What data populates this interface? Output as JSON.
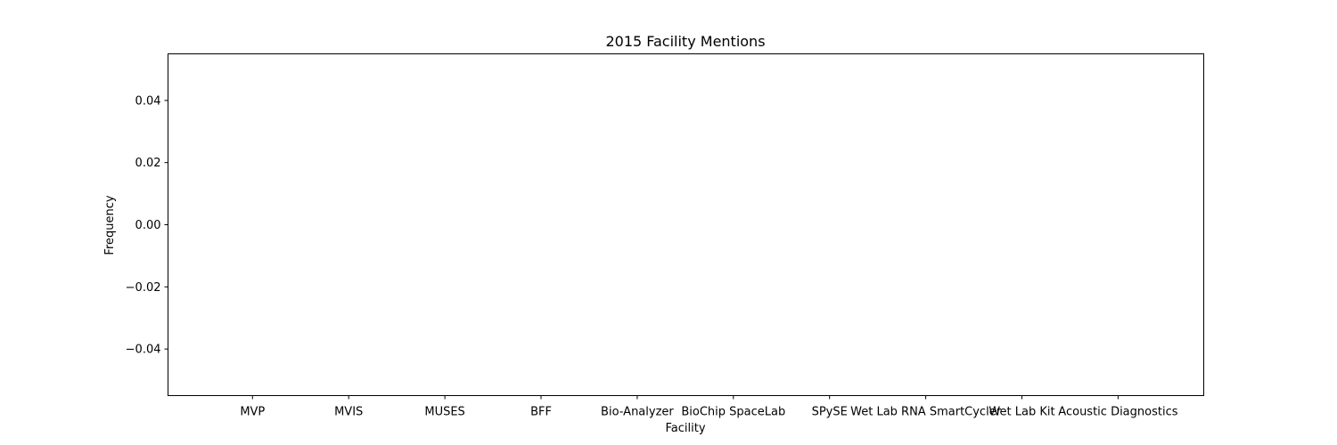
{
  "chart_data": {
    "type": "bar",
    "title": "2015 Facility Mentions",
    "xlabel": "Facility",
    "ylabel": "Frequency",
    "categories": [
      "MVP",
      "MVIS",
      "MUSES",
      "BFF",
      "Bio-Analyzer",
      "BioChip SpaceLab",
      "SPySE",
      "Wet Lab RNA SmartCycler",
      "Wet Lab Kit",
      "Acoustic Diagnostics"
    ],
    "values": [
      0,
      0,
      0,
      0,
      0,
      0,
      0,
      0,
      0,
      0
    ],
    "yticks": [
      "0.04",
      "0.02",
      "0.00",
      "−0.02",
      "−0.04"
    ],
    "ylim": [
      -0.055,
      0.055
    ],
    "grid": false
  }
}
